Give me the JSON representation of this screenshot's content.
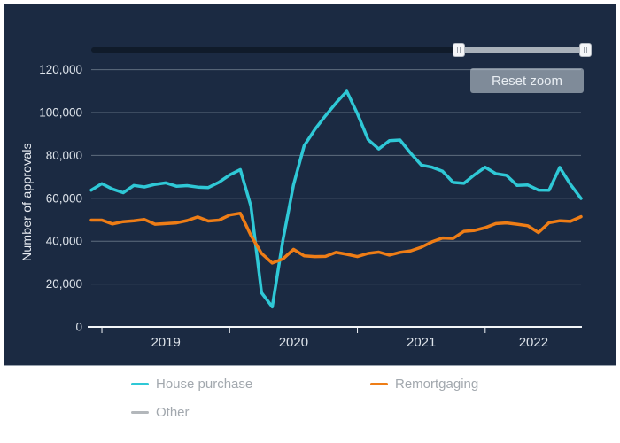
{
  "toolbar": {
    "reset_zoom_label": "Reset zoom",
    "range_selector": {
      "start_fraction": 0.75,
      "end_fraction": 1.0
    }
  },
  "colors": {
    "panel_background": "#1b2a42",
    "house_purchase": "#2fc8d6",
    "remortgaging": "#ee7d16",
    "other": "#b3b7bb",
    "axis_text": "#dde3ea",
    "gridline": "rgba(205,215,225,0.38)",
    "axis_line": "#f2f5f8"
  },
  "chart_data": {
    "type": "line",
    "title": "",
    "xlabel": "",
    "ylabel": "Number of approvals",
    "ylim": [
      0,
      120000
    ],
    "ytick_step": 20000,
    "ytick_labels": [
      "0",
      "20,000",
      "40,000",
      "60,000",
      "80,000",
      "100,000",
      "120,000"
    ],
    "grid": "horizontal",
    "legend_position": "bottom",
    "x": [
      "Dec 2018",
      "Jan 2019",
      "Feb 2019",
      "Mar 2019",
      "Apr 2019",
      "May 2019",
      "Jun 2019",
      "Jul 2019",
      "Aug 2019",
      "Sep 2019",
      "Oct 2019",
      "Nov 2019",
      "Dec 2019",
      "Jan 2020",
      "Feb 2020",
      "Mar 2020",
      "Apr 2020",
      "May 2020",
      "Jun 2020",
      "Jul 2020",
      "Aug 2020",
      "Sep 2020",
      "Oct 2020",
      "Nov 2020",
      "Dec 2020",
      "Jan 2021",
      "Feb 2021",
      "Mar 2021",
      "Apr 2021",
      "May 2021",
      "Jun 2021",
      "Jul 2021",
      "Aug 2021",
      "Sep 2021",
      "Oct 2021",
      "Nov 2021",
      "Dec 2021",
      "Jan 2022",
      "Feb 2022",
      "Mar 2022",
      "Apr 2022",
      "May 2022",
      "Jun 2022",
      "Jul 2022",
      "Aug 2022",
      "Sep 2022",
      "Oct 2022"
    ],
    "xtick_years": [
      {
        "label": "2019",
        "month_index": 1
      },
      {
        "label": "2020",
        "month_index": 13
      },
      {
        "label": "2021",
        "month_index": 25
      },
      {
        "label": "2022",
        "month_index": 37
      }
    ],
    "series": [
      {
        "name": "House purchase",
        "color": "#2fc8d6",
        "visible": true,
        "values": [
          63800,
          66800,
          64300,
          62600,
          66000,
          65300,
          66500,
          67200,
          65600,
          65900,
          65200,
          65000,
          67500,
          70900,
          73400,
          56300,
          15900,
          9400,
          40400,
          66300,
          84500,
          92100,
          98500,
          104500,
          109900,
          99500,
          87400,
          83000,
          86900,
          87200,
          81000,
          75500,
          74500,
          72600,
          67400,
          67000,
          71000,
          74500,
          71500,
          70700,
          66000,
          66200,
          63800,
          63700,
          74400,
          66500,
          59900
        ]
      },
      {
        "name": "Remortgaging",
        "color": "#ee7d16",
        "visible": true,
        "values": [
          49800,
          49800,
          48000,
          49100,
          49500,
          50100,
          47900,
          48200,
          48500,
          49600,
          51300,
          49400,
          49800,
          52200,
          53000,
          42700,
          34300,
          29800,
          31700,
          36200,
          33200,
          32800,
          32900,
          34800,
          33900,
          32800,
          34300,
          34900,
          33500,
          34800,
          35500,
          37200,
          39700,
          41500,
          41300,
          44600,
          45000,
          46300,
          48200,
          48500,
          47900,
          47200,
          44000,
          48600,
          49500,
          49200,
          51400
        ]
      },
      {
        "name": "Other",
        "color": "#b3b7bb",
        "visible": false,
        "values": []
      }
    ]
  }
}
